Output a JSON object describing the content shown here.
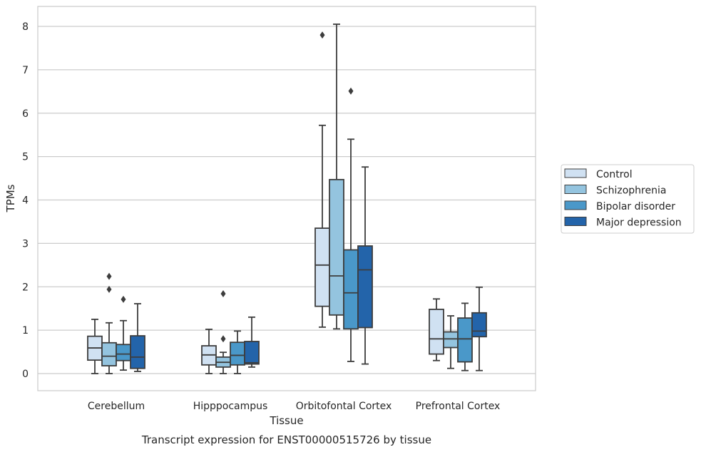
{
  "chart_data": {
    "type": "boxplot",
    "title": "Transcript expression for ENST00000515726 by tissue",
    "xlabel": "Tissue",
    "ylabel": "TPMs",
    "ylim": [
      -0.4,
      8.45
    ],
    "yticks": [
      0,
      1,
      2,
      3,
      4,
      5,
      6,
      7,
      8
    ],
    "grid": "horizontal",
    "legend_position": "right",
    "categories": [
      "Cerebellum",
      "Hipppocampus",
      "Orbitofontal Cortex",
      "Prefrontal Cortex"
    ],
    "series": [
      {
        "name": "Control",
        "color": "#d0e1f2",
        "boxes": [
          {
            "whislo": 0.0,
            "q1": 0.31,
            "med": 0.59,
            "q3": 0.86,
            "whishi": 1.25,
            "fliers": []
          },
          {
            "whislo": 0.0,
            "q1": 0.2,
            "med": 0.43,
            "q3": 0.64,
            "whishi": 1.02,
            "fliers": []
          },
          {
            "whislo": 1.07,
            "q1": 1.55,
            "med": 2.5,
            "q3": 3.35,
            "whishi": 5.72,
            "fliers": [
              7.8
            ]
          },
          {
            "whislo": 0.3,
            "q1": 0.45,
            "med": 0.8,
            "q3": 1.48,
            "whishi": 1.72,
            "fliers": []
          }
        ]
      },
      {
        "name": "Schizophrenia",
        "color": "#94c4df",
        "boxes": [
          {
            "whislo": 0.0,
            "q1": 0.18,
            "med": 0.4,
            "q3": 0.71,
            "whishi": 1.17,
            "fliers": [
              1.94,
              2.24
            ]
          },
          {
            "whislo": 0.0,
            "q1": 0.15,
            "med": 0.26,
            "q3": 0.38,
            "whishi": 0.49,
            "fliers": [
              0.8,
              1.84
            ]
          },
          {
            "whislo": 1.03,
            "q1": 1.35,
            "med": 2.25,
            "q3": 4.47,
            "whishi": 8.05,
            "fliers": []
          },
          {
            "whislo": 0.12,
            "q1": 0.6,
            "med": 0.8,
            "q3": 0.96,
            "whishi": 1.33,
            "fliers": []
          }
        ]
      },
      {
        "name": "Bipolar disorder",
        "color": "#4a98c9",
        "boxes": [
          {
            "whislo": 0.08,
            "q1": 0.3,
            "med": 0.45,
            "q3": 0.67,
            "whishi": 1.22,
            "fliers": [
              1.71
            ]
          },
          {
            "whislo": 0.0,
            "q1": 0.2,
            "med": 0.42,
            "q3": 0.72,
            "whishi": 0.98,
            "fliers": []
          },
          {
            "whislo": 0.28,
            "q1": 1.03,
            "med": 1.86,
            "q3": 2.85,
            "whishi": 5.4,
            "fliers": [
              6.51
            ]
          },
          {
            "whislo": 0.07,
            "q1": 0.27,
            "med": 0.8,
            "q3": 1.28,
            "whishi": 1.62,
            "fliers": []
          }
        ]
      },
      {
        "name": "Major depression",
        "color": "#2364aa",
        "boxes": [
          {
            "whislo": 0.05,
            "q1": 0.12,
            "med": 0.38,
            "q3": 0.87,
            "whishi": 1.61,
            "fliers": []
          },
          {
            "whislo": 0.15,
            "q1": 0.22,
            "med": 0.25,
            "q3": 0.74,
            "whishi": 1.3,
            "fliers": []
          },
          {
            "whislo": 0.22,
            "q1": 1.06,
            "med": 2.39,
            "q3": 2.94,
            "whishi": 4.76,
            "fliers": []
          },
          {
            "whislo": 0.07,
            "q1": 0.85,
            "med": 0.98,
            "q3": 1.4,
            "whishi": 1.99,
            "fliers": []
          }
        ]
      }
    ]
  }
}
